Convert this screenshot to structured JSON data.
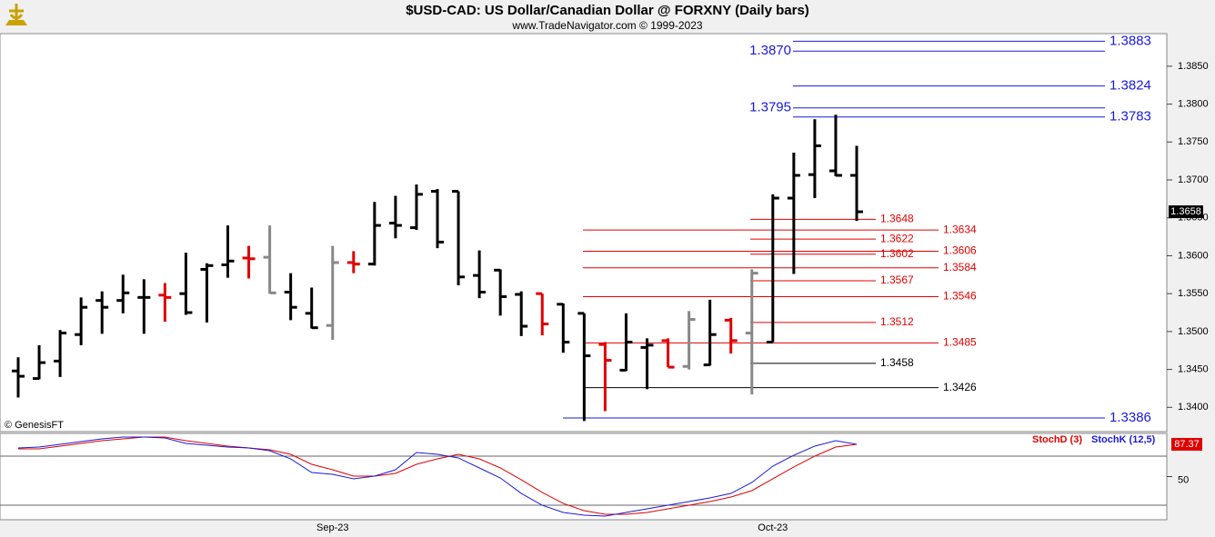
{
  "chart_data": [
    {
      "type": "ohlc",
      "title": "$USD-CAD:  US Dollar/Canadian Dollar @ FORXNY  (Daily bars)",
      "subtitle": "www.TradeNavigator.com © 1999-2023",
      "copyright": "© GenesisFT",
      "categories": [
        null,
        null,
        null,
        null,
        null,
        null,
        null,
        null,
        null,
        null,
        null,
        null,
        null,
        null,
        null,
        "Sep-23",
        null,
        null,
        null,
        null,
        null,
        null,
        null,
        null,
        null,
        null,
        null,
        null,
        null,
        null,
        null,
        null,
        null,
        null,
        null,
        null,
        "Oct-23",
        null,
        null,
        null,
        null
      ],
      "open": [
        1.3448,
        1.3438,
        1.3461,
        1.3496,
        1.3541,
        1.3541,
        1.3545,
        1.3548,
        1.355,
        1.3582,
        1.3588,
        1.3597,
        1.3598,
        1.3552,
        1.3524,
        1.3508,
        1.3591,
        1.3589,
        1.3643,
        1.3637,
        1.3685,
        1.3685,
        1.3574,
        1.3581,
        1.3549,
        1.355,
        1.3536,
        1.3524,
        1.3483,
        1.3449,
        1.3479,
        1.3488,
        1.3454,
        1.3456,
        1.3515,
        1.3498,
        1.3486,
        1.3676,
        1.3707,
        1.3712,
        1.3706
      ],
      "high": [
        1.3466,
        1.3482,
        1.3502,
        1.3545,
        1.3553,
        1.3575,
        1.3569,
        1.3564,
        1.3604,
        1.359,
        1.364,
        1.3613,
        1.364,
        1.3577,
        1.3558,
        1.3613,
        1.3606,
        1.3671,
        1.3679,
        1.3694,
        1.3688,
        1.3685,
        1.3607,
        1.3582,
        1.3553,
        1.355,
        1.3537,
        1.3524,
        1.3486,
        1.3524,
        1.3491,
        1.3491,
        1.3527,
        1.3542,
        1.3518,
        1.3582,
        1.3681,
        1.3736,
        1.378,
        1.3786,
        1.3745
      ],
      "low": [
        1.3413,
        1.3437,
        1.344,
        1.3482,
        1.3497,
        1.3524,
        1.3497,
        1.3513,
        1.3522,
        1.3512,
        1.3571,
        1.357,
        1.355,
        1.3515,
        1.3504,
        1.3489,
        1.3577,
        1.3587,
        1.3623,
        1.3634,
        1.361,
        1.3561,
        1.3544,
        1.3521,
        1.3494,
        1.3495,
        1.3472,
        1.3382,
        1.3395,
        1.3448,
        1.3424,
        1.3453,
        1.345,
        1.3455,
        1.3471,
        1.3417,
        1.3486,
        1.3576,
        1.3676,
        1.3705,
        1.3646
      ],
      "close": [
        1.3441,
        1.3459,
        1.3498,
        1.3532,
        1.3532,
        1.3551,
        1.3545,
        1.3545,
        1.3525,
        1.3587,
        1.3593,
        1.3596,
        1.3551,
        1.3532,
        1.3505,
        1.3591,
        1.3589,
        1.364,
        1.364,
        1.3681,
        1.3618,
        1.3572,
        1.3552,
        1.3546,
        1.3507,
        1.351,
        1.3486,
        1.3468,
        1.3462,
        1.3486,
        1.3482,
        1.3453,
        1.3516,
        1.3496,
        1.3488,
        1.3577,
        1.3676,
        1.3706,
        1.3745,
        1.3706,
        1.3658
      ],
      "colors": [
        "#000000",
        "#000000",
        "#000000",
        "#000000",
        "#000000",
        "#000000",
        "#000000",
        "#e00000",
        "#000000",
        "#000000",
        "#000000",
        "#e00000",
        "#888888",
        "#000000",
        "#000000",
        "#888888",
        "#e00000",
        "#000000",
        "#000000",
        "#000000",
        "#000000",
        "#000000",
        "#000000",
        "#000000",
        "#000000",
        "#e00000",
        "#000000",
        "#000000",
        "#e00000",
        "#000000",
        "#000000",
        "#e00000",
        "#888888",
        "#000000",
        "#e00000",
        "#888888",
        "#000000",
        "#000000",
        "#000000",
        "#000000",
        "#000000"
      ],
      "ylim": [
        1.3368,
        1.3893
      ],
      "yticks": [
        {
          "value": 1.385,
          "label": "1.3850"
        },
        {
          "value": 1.38,
          "label": "1.3800"
        },
        {
          "value": 1.375,
          "label": "1.3750"
        },
        {
          "value": 1.37,
          "label": "1.3700"
        },
        {
          "value": 1.365,
          "label": "1.3650"
        },
        {
          "value": 1.36,
          "label": "1.3600"
        },
        {
          "value": 1.355,
          "label": "1.3550"
        },
        {
          "value": 1.35,
          "label": "1.3500"
        },
        {
          "value": 1.345,
          "label": "1.3450"
        },
        {
          "value": 1.34,
          "label": "1.3400"
        }
      ],
      "levels": [
        {
          "value": 1.3883,
          "color": "#1a1adb"
        },
        {
          "value": 1.387,
          "label": "1.3870",
          "color": "#1a1adb"
        },
        {
          "value": 1.3824,
          "color": "#1a1adb"
        },
        {
          "value": 1.3795,
          "color": "#1a1adb"
        },
        {
          "value": 1.3783,
          "color": "#1a1adb"
        },
        {
          "value": 1.3648,
          "color": "#e00000"
        },
        {
          "value": 1.3634,
          "color": "#e00000"
        },
        {
          "value": 1.3622,
          "color": "#e00000"
        },
        {
          "value": 1.3606,
          "color": "#e00000"
        },
        {
          "value": 1.3602,
          "color": "#e00000"
        },
        {
          "value": 1.3584,
          "color": "#e00000"
        },
        {
          "value": 1.3567,
          "color": "#e00000"
        },
        {
          "value": 1.3546,
          "color": "#e00000"
        },
        {
          "value": 1.3512,
          "color": "#e00000"
        },
        {
          "value": 1.3485,
          "color": "#e00000"
        },
        {
          "value": 1.3458,
          "color": "#000000"
        },
        {
          "value": 1.3426,
          "color": "#000000"
        },
        {
          "value": 1.3386,
          "color": "#1a1adb"
        }
      ]
    },
    {
      "type": "line",
      "series": [
        {
          "name": "StochD (3)",
          "color": "#e00000",
          "values": [
            82.1,
            82.1,
            85.3,
            88.4,
            91.6,
            93.7,
            95.8,
            95.8,
            91.6,
            88.4,
            85.3,
            83.2,
            81.1,
            75.8,
            64.2,
            57.9,
            50.5,
            50.5,
            53.7,
            64.2,
            70.5,
            75.8,
            70.5,
            60.0,
            46.3,
            31.6,
            18.9,
            10.5,
            6.3,
            6.3,
            8.4,
            12.6,
            16.8,
            21.1,
            26.3,
            33.7,
            47.4,
            61.1,
            73.7,
            84.2,
            87.4
          ]
        },
        {
          "name": "StochK (12,5)",
          "color": "#1a1adb",
          "values": [
            83.2,
            84.2,
            87.4,
            90.5,
            93.7,
            95.8,
            95.8,
            94.7,
            88.4,
            86.3,
            84.2,
            83.2,
            80.0,
            70.5,
            54.7,
            52.6,
            47.4,
            50.5,
            57.9,
            77.9,
            75.8,
            71.6,
            60.0,
            48.4,
            30.5,
            16.8,
            8.4,
            5.3,
            4.2,
            8.4,
            12.6,
            16.8,
            21.1,
            25.3,
            30.5,
            43.2,
            62.1,
            74.7,
            85.3,
            91.6,
            87.37
          ]
        }
      ],
      "ylim": [
        0,
        100
      ],
      "yticks": [
        50
      ]
    }
  ]
}
